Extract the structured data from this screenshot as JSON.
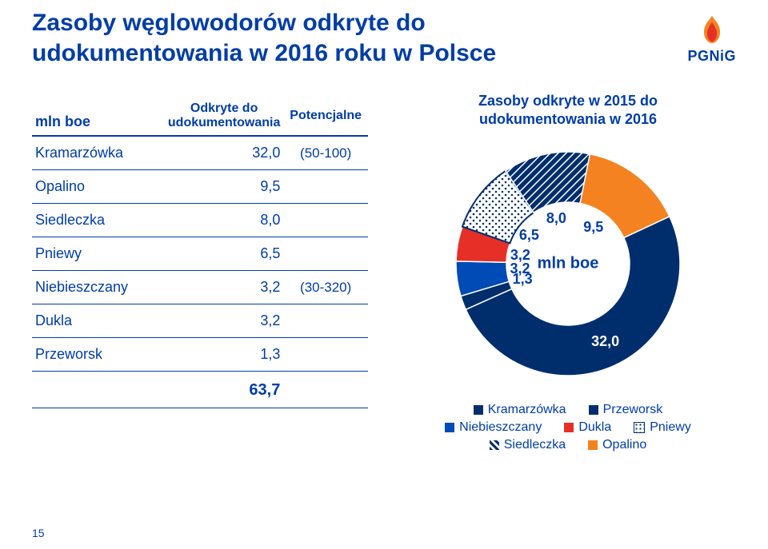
{
  "title_line1": "Zasoby węglowodorów odkryte do",
  "title_line2": "udokumentowania w 2016 roku w Polsce",
  "logo_text": "PGNiG",
  "page_number": "15",
  "table": {
    "axis_label": "mln boe",
    "col1": "Odkryte do udokumentowania",
    "col2": "Potencjalne",
    "rows": [
      {
        "name": "Kramarzówka",
        "val": "32,0",
        "note": "(50-100)"
      },
      {
        "name": "Opalino",
        "val": "9,5",
        "note": ""
      },
      {
        "name": "Siedleczka",
        "val": "8,0",
        "note": ""
      },
      {
        "name": "Pniewy",
        "val": "6,5",
        "note": ""
      },
      {
        "name": "Niebieszczany",
        "val": "3,2",
        "note": "(30-320)"
      },
      {
        "name": "Dukla",
        "val": "3,2",
        "note": ""
      },
      {
        "name": "Przeworsk",
        "val": "1,3",
        "note": ""
      }
    ],
    "total": "63,7"
  },
  "chart": {
    "title_line1": "Zasoby odkryte w 2015 do",
    "title_line2": "udokumentowania w 2016",
    "center_label": "mln boe",
    "slices": [
      {
        "name": "Kramarzówka",
        "value": 32.0,
        "color": "#002e6d",
        "label": "32,0"
      },
      {
        "name": "Przeworsk",
        "value": 1.3,
        "color": "#002e6d",
        "label": "1,3"
      },
      {
        "name": "Niebieszczany",
        "value": 3.2,
        "color": "#004bb5",
        "label": "3,2"
      },
      {
        "name": "Dukla",
        "value": 3.2,
        "color": "#e63027",
        "label": "3,2"
      },
      {
        "name": "Pniewy",
        "value": 6.5,
        "color": "#ffffff",
        "pattern": "dots",
        "stroke": "#002e6d",
        "label": "6,5"
      },
      {
        "name": "Siedleczka",
        "value": 8.0,
        "color": "#002e6d",
        "pattern": "hatch",
        "label": "8,0"
      },
      {
        "name": "Opalino",
        "value": 9.5,
        "color": "#f58220",
        "label": "9,5"
      }
    ],
    "inner_radius": 0.55,
    "start_angle": -25,
    "background": "#ffffff",
    "text_color": "#003da6"
  },
  "legend": [
    {
      "label": "Kramarzówka",
      "color": "#002e6d"
    },
    {
      "label": "Przeworsk",
      "color": "#002e6d"
    },
    {
      "label": "Niebieszczany",
      "color": "#004bb5"
    },
    {
      "label": "Dukla",
      "color": "#e63027"
    },
    {
      "label": "Pniewy",
      "color": "#ffffff",
      "pattern": "dots",
      "stroke": "#002e6d"
    },
    {
      "label": "Siedleczka",
      "color": "#002e6d",
      "pattern": "hatch"
    },
    {
      "label": "Opalino",
      "color": "#f58220"
    }
  ],
  "colors": {
    "brand": "#003da6",
    "flame1": "#f58220",
    "flame2": "#e63027"
  }
}
